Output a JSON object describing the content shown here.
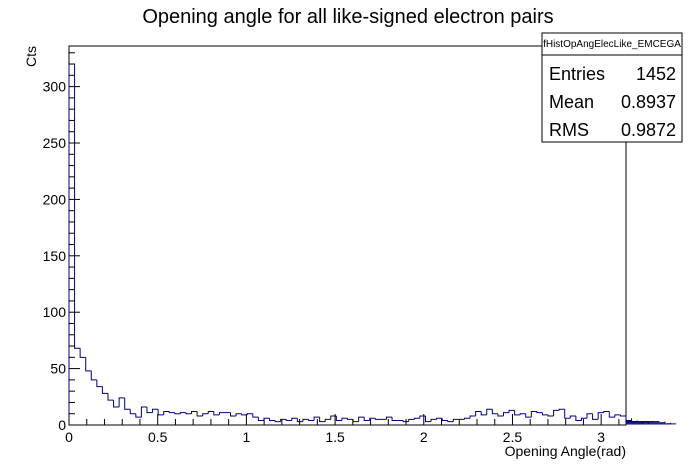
{
  "chart_data": {
    "type": "bar",
    "title": "Opening angle for all like-signed electron pairs",
    "xlabel": "Opening Angle(rad)",
    "ylabel": "Cts",
    "xlim": [
      0,
      3.14
    ],
    "ylim": [
      0,
      336
    ],
    "x_ticks": [
      "0",
      "0.5",
      "1",
      "1.5",
      "2",
      "2.5",
      "3"
    ],
    "y_ticks": [
      "0",
      "50",
      "100",
      "150",
      "200",
      "250",
      "300"
    ],
    "bin_width": 0.0314,
    "values": [
      320,
      68,
      60,
      48,
      40,
      34,
      28,
      22,
      16,
      24,
      14,
      10,
      7,
      16,
      11,
      14,
      9,
      12,
      11,
      10,
      11,
      10,
      12,
      8,
      10,
      12,
      9,
      11,
      11,
      8,
      10,
      9,
      10,
      7,
      4,
      6,
      4,
      3,
      5,
      4,
      6,
      3,
      5,
      4,
      7,
      3,
      5,
      8,
      4,
      6,
      5,
      3,
      7,
      4,
      6,
      5,
      5,
      7,
      4,
      4,
      3,
      5,
      6,
      8,
      3,
      5,
      6,
      4,
      3,
      5,
      5,
      6,
      8,
      12,
      9,
      14,
      10,
      8,
      11,
      13,
      9,
      10,
      7,
      12,
      11,
      9,
      8,
      13,
      14,
      6,
      8,
      4,
      6,
      10,
      5,
      11,
      12,
      7,
      9,
      8,
      6,
      4,
      3,
      1,
      3,
      3,
      3,
      2,
      1,
      1
    ],
    "grid": false,
    "line_color": "#000080",
    "stats_box": {
      "name": "fHistOpAngElecLike_EMCEGA",
      "entries_label": "Entries",
      "entries_value": "1452",
      "mean_label": "Mean",
      "mean_value": "0.8937",
      "rms_label": "RMS",
      "rms_value": "0.9872"
    }
  }
}
